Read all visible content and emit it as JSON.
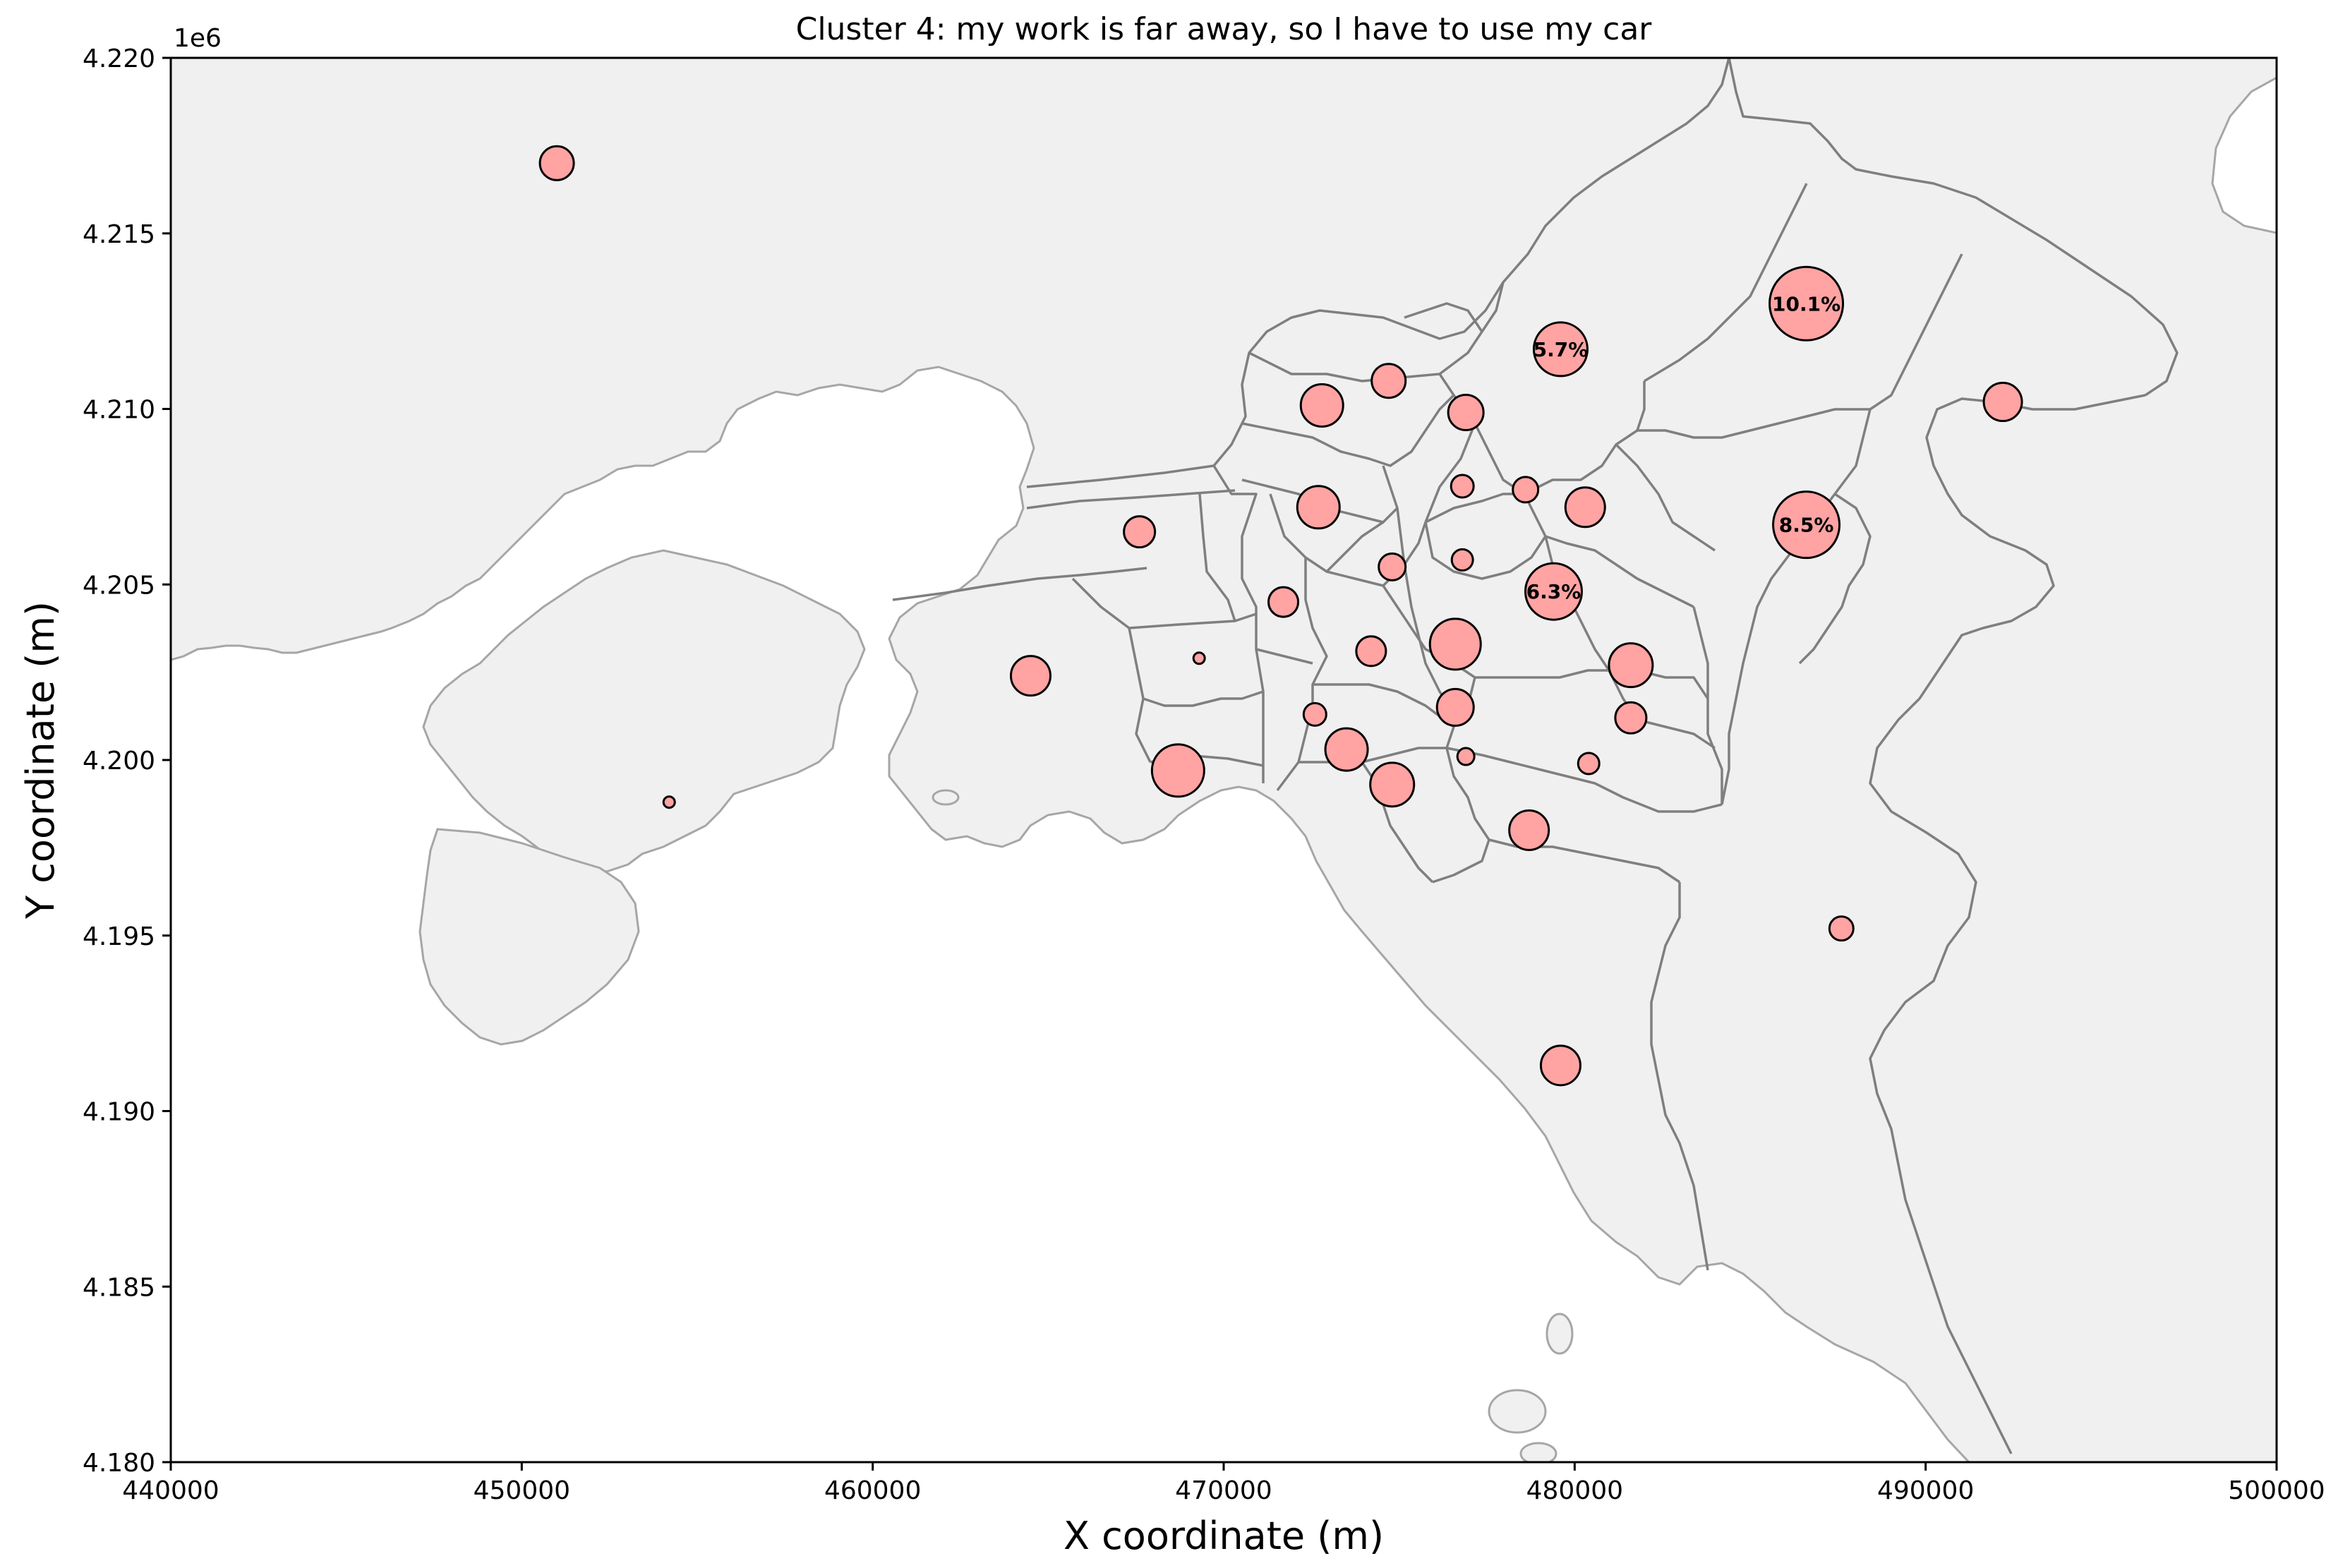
{
  "title": "Cluster 4: my work is far away, so I have to use my car",
  "axes": {
    "xlabel": "X coordinate (m)",
    "ylabel": "Y coordinate (m)",
    "xlim": [
      440000,
      500000
    ],
    "ylim": [
      4180000,
      4220000
    ],
    "y_offset_label": "1e6",
    "x_ticks": [
      {
        "value": 440000,
        "label": "440000"
      },
      {
        "value": 450000,
        "label": "450000"
      },
      {
        "value": 460000,
        "label": "460000"
      },
      {
        "value": 470000,
        "label": "470000"
      },
      {
        "value": 480000,
        "label": "480000"
      },
      {
        "value": 490000,
        "label": "490000"
      },
      {
        "value": 500000,
        "label": "500000"
      }
    ],
    "y_ticks": [
      {
        "value": 4180000,
        "label": "4.180"
      },
      {
        "value": 4185000,
        "label": "4.185"
      },
      {
        "value": 4190000,
        "label": "4.190"
      },
      {
        "value": 4195000,
        "label": "4.195"
      },
      {
        "value": 4200000,
        "label": "4.200"
      },
      {
        "value": 4205000,
        "label": "4.205"
      },
      {
        "value": 4210000,
        "label": "4.210"
      },
      {
        "value": 4215000,
        "label": "4.215"
      },
      {
        "value": 4220000,
        "label": "4.220"
      }
    ],
    "grid": false
  },
  "colors": {
    "land": "#f0f0f0",
    "sea": "#ffffff",
    "coast": "#a6a6a6",
    "boundary": "#7f7f7f",
    "bubble_fill": "#ffa3a3",
    "bubble_edge": "#000000"
  },
  "chart_data": {
    "type": "scatter",
    "title": "Cluster 4: my work is far away, so I have to use my car",
    "xlabel": "X coordinate (m)",
    "ylabel": "Y coordinate (m)",
    "xlim": [
      440000,
      500000
    ],
    "ylim": [
      4180000,
      4220000
    ],
    "marker": "proportional circle",
    "points": [
      {
        "x": 451000,
        "y": 4217000,
        "r": 24
      },
      {
        "x": 486600,
        "y": 4213000,
        "r": 52,
        "label": "10.1%"
      },
      {
        "x": 479600,
        "y": 4211700,
        "r": 38,
        "label": "5.7%"
      },
      {
        "x": 474700,
        "y": 4210800,
        "r": 24
      },
      {
        "x": 472800,
        "y": 4210100,
        "r": 30
      },
      {
        "x": 476900,
        "y": 4209900,
        "r": 25
      },
      {
        "x": 492200,
        "y": 4210200,
        "r": 27
      },
      {
        "x": 486600,
        "y": 4206700,
        "r": 47,
        "label": "8.5%"
      },
      {
        "x": 476800,
        "y": 4207800,
        "r": 16
      },
      {
        "x": 478600,
        "y": 4207700,
        "r": 18
      },
      {
        "x": 480300,
        "y": 4207200,
        "r": 28
      },
      {
        "x": 472700,
        "y": 4207200,
        "r": 30
      },
      {
        "x": 467600,
        "y": 4206500,
        "r": 22
      },
      {
        "x": 476800,
        "y": 4205700,
        "r": 15
      },
      {
        "x": 474800,
        "y": 4205500,
        "r": 19
      },
      {
        "x": 479400,
        "y": 4204800,
        "r": 40,
        "label": "6.3%"
      },
      {
        "x": 471700,
        "y": 4204500,
        "r": 21
      },
      {
        "x": 476600,
        "y": 4203300,
        "r": 36
      },
      {
        "x": 474200,
        "y": 4203100,
        "r": 21
      },
      {
        "x": 469300,
        "y": 4202900,
        "r": 8
      },
      {
        "x": 481600,
        "y": 4202700,
        "r": 31
      },
      {
        "x": 464500,
        "y": 4202400,
        "r": 28
      },
      {
        "x": 476600,
        "y": 4201500,
        "r": 26
      },
      {
        "x": 472600,
        "y": 4201300,
        "r": 16
      },
      {
        "x": 481600,
        "y": 4201200,
        "r": 22
      },
      {
        "x": 473500,
        "y": 4200300,
        "r": 30
      },
      {
        "x": 476900,
        "y": 4200100,
        "r": 12
      },
      {
        "x": 480400,
        "y": 4199900,
        "r": 15
      },
      {
        "x": 468700,
        "y": 4199700,
        "r": 37
      },
      {
        "x": 474800,
        "y": 4199300,
        "r": 31
      },
      {
        "x": 454200,
        "y": 4198800,
        "r": 8
      },
      {
        "x": 478700,
        "y": 4198000,
        "r": 28
      },
      {
        "x": 487600,
        "y": 4195200,
        "r": 17
      },
      {
        "x": 479600,
        "y": 4191300,
        "r": 28
      }
    ]
  }
}
